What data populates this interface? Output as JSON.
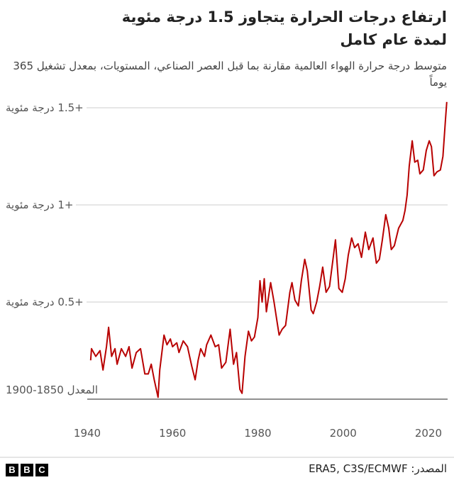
{
  "chart_data": {
    "type": "line",
    "title": "ارتفاع درجات الحرارة يتجاوز 1.5 درجة مئوية لمدة عام كامل",
    "subtitle": "متوسط درجة حرارة الهواء العالمية مقارنة بما قبل العصر الصناعي، المستويات، بمعدل تشغيل 365 يوماً",
    "source": "المصدر: ERA5, C3S/ECMWF",
    "logo": [
      "B",
      "B",
      "C"
    ],
    "color": "#b80000",
    "xlim": [
      1940,
      2024.5
    ],
    "xticks": [
      1940,
      1960,
      1980,
      2000,
      2020
    ],
    "ylim": [
      0,
      1.5
    ],
    "yticks": [
      {
        "value": 0,
        "label": "المعدل 1850-1900"
      },
      {
        "value": 0.5,
        "label": "+0.5 درجة مئوية"
      },
      {
        "value": 1,
        "label": "+1 درجة مئوية"
      },
      {
        "value": 1.5,
        "label": "+1.5 درجة مئوية"
      }
    ],
    "grid": true,
    "x": [
      1940.8,
      1941,
      1942,
      1943,
      1943.7,
      1944.5,
      1945,
      1945.7,
      1946.5,
      1947,
      1948,
      1949,
      1949.8,
      1950.5,
      1951.5,
      1952.5,
      1953.5,
      1954.3,
      1955,
      1955.7,
      1956.6,
      1957,
      1958,
      1958.7,
      1959.5,
      1960,
      1961,
      1961.5,
      1962.5,
      1963.5,
      1964.5,
      1965.3,
      1966,
      1966.6,
      1967.5,
      1968,
      1969,
      1970,
      1970.8,
      1971.5,
      1972.5,
      1973.5,
      1974.3,
      1975,
      1975.8,
      1976.3,
      1977,
      1977.8,
      1978.5,
      1979.2,
      1980,
      1980.5,
      1981,
      1981.5,
      1982,
      1983,
      1983.8,
      1984.5,
      1985,
      1985.7,
      1986.5,
      1987.5,
      1988,
      1988.7,
      1989.5,
      1990.2,
      1991,
      1991.6,
      1992.5,
      1993,
      1993.8,
      1994.5,
      1995.2,
      1996,
      1996.8,
      1997.5,
      1998.2,
      1999,
      1999.8,
      2000.5,
      2001.2,
      2002,
      2002.7,
      2003.5,
      2004.3,
      2005.2,
      2006,
      2007,
      2007.8,
      2008.5,
      2009.2,
      2010,
      2010.7,
      2011.3,
      2012,
      2013,
      2014,
      2014.5,
      2015,
      2015.5,
      2016.2,
      2016.8,
      2017.5,
      2018,
      2018.8,
      2019.5,
      2020.2,
      2020.7,
      2021.3,
      2022,
      2022.8,
      2023.4,
      2024,
      2024.3
    ],
    "values": [
      0.2,
      0.26,
      0.22,
      0.25,
      0.15,
      0.27,
      0.37,
      0.22,
      0.26,
      0.18,
      0.26,
      0.22,
      0.27,
      0.16,
      0.24,
      0.26,
      0.13,
      0.13,
      0.18,
      0.1,
      0.01,
      0.15,
      0.33,
      0.28,
      0.31,
      0.27,
      0.29,
      0.24,
      0.3,
      0.27,
      0.17,
      0.1,
      0.2,
      0.26,
      0.22,
      0.28,
      0.33,
      0.27,
      0.28,
      0.16,
      0.19,
      0.36,
      0.18,
      0.24,
      0.05,
      0.03,
      0.22,
      0.35,
      0.3,
      0.32,
      0.42,
      0.61,
      0.5,
      0.62,
      0.45,
      0.6,
      0.5,
      0.4,
      0.33,
      0.36,
      0.38,
      0.55,
      0.6,
      0.51,
      0.48,
      0.61,
      0.72,
      0.66,
      0.46,
      0.44,
      0.5,
      0.58,
      0.68,
      0.55,
      0.58,
      0.7,
      0.82,
      0.57,
      0.55,
      0.62,
      0.74,
      0.83,
      0.78,
      0.8,
      0.73,
      0.86,
      0.77,
      0.83,
      0.7,
      0.72,
      0.82,
      0.95,
      0.88,
      0.77,
      0.79,
      0.88,
      0.92,
      0.97,
      1.05,
      1.2,
      1.33,
      1.22,
      1.23,
      1.16,
      1.18,
      1.28,
      1.33,
      1.3,
      1.15,
      1.17,
      1.18,
      1.25,
      1.44,
      1.53
    ]
  }
}
